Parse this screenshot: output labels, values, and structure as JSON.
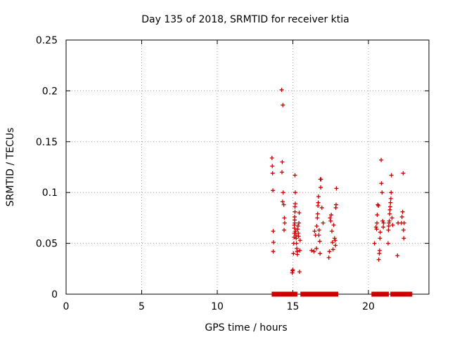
{
  "chart_data": {
    "type": "scatter",
    "title": "Day 135 of 2018, SRMTID for receiver ktia",
    "xlabel": "GPS time / hours",
    "ylabel": "SRMTID / TECUs",
    "xlim": [
      0,
      24
    ],
    "ylim": [
      0,
      0.25
    ],
    "x_ticks": [
      "0",
      "5",
      "10",
      "15",
      "20"
    ],
    "y_ticks": [
      "0",
      "0.05",
      "0.1",
      "0.15",
      "0.2",
      "0.25"
    ],
    "grid": true,
    "marker": "+",
    "color": "#cc0000",
    "series": [
      {
        "points": [
          [
            13.62,
            0.134
          ],
          [
            13.64,
            0.126
          ],
          [
            13.66,
            0.119
          ],
          [
            13.68,
            0.102
          ],
          [
            13.7,
            0.062
          ],
          [
            13.72,
            0.051
          ],
          [
            13.7,
            0.042
          ],
          [
            14.26,
            0.201
          ],
          [
            14.34,
            0.186
          ],
          [
            14.3,
            0.13
          ],
          [
            14.28,
            0.12
          ],
          [
            14.36,
            0.1
          ],
          [
            14.32,
            0.091
          ],
          [
            14.4,
            0.088
          ],
          [
            14.44,
            0.075
          ],
          [
            14.46,
            0.07
          ],
          [
            14.42,
            0.063
          ],
          [
            14.96,
            0.021
          ],
          [
            14.98,
            0.023
          ],
          [
            15.0,
            0.024
          ],
          [
            15.04,
            0.04
          ],
          [
            15.06,
            0.05
          ],
          [
            15.08,
            0.056
          ],
          [
            15.1,
            0.06
          ],
          [
            15.1,
            0.065
          ],
          [
            15.1,
            0.068
          ],
          [
            15.12,
            0.07
          ],
          [
            15.12,
            0.073
          ],
          [
            15.12,
            0.076
          ],
          [
            15.14,
            0.081
          ],
          [
            15.14,
            0.086
          ],
          [
            15.16,
            0.089
          ],
          [
            15.16,
            0.1
          ],
          [
            15.14,
            0.117
          ],
          [
            15.18,
            0.062
          ],
          [
            15.2,
            0.058
          ],
          [
            15.22,
            0.055
          ],
          [
            15.24,
            0.05
          ],
          [
            15.26,
            0.045
          ],
          [
            15.28,
            0.042
          ],
          [
            15.3,
            0.039
          ],
          [
            15.32,
            0.064
          ],
          [
            15.34,
            0.067
          ],
          [
            15.36,
            0.06
          ],
          [
            15.38,
            0.057
          ],
          [
            15.4,
            0.07
          ],
          [
            15.42,
            0.08
          ],
          [
            15.44,
            0.022
          ],
          [
            15.46,
            0.043
          ],
          [
            15.48,
            0.053
          ],
          [
            16.24,
            0.043
          ],
          [
            16.4,
            0.042
          ],
          [
            16.44,
            0.062
          ],
          [
            16.5,
            0.058
          ],
          [
            16.56,
            0.045
          ],
          [
            16.58,
            0.067
          ],
          [
            16.62,
            0.075
          ],
          [
            16.64,
            0.079
          ],
          [
            16.66,
            0.087
          ],
          [
            16.68,
            0.09
          ],
          [
            16.7,
            0.096
          ],
          [
            16.72,
            0.058
          ],
          [
            16.74,
            0.063
          ],
          [
            16.78,
            0.052
          ],
          [
            16.8,
            0.04
          ],
          [
            16.82,
            0.113
          ],
          [
            16.84,
            0.105
          ],
          [
            16.86,
            0.113
          ],
          [
            16.92,
            0.085
          ],
          [
            17.0,
            0.07
          ],
          [
            17.38,
            0.036
          ],
          [
            17.42,
            0.042
          ],
          [
            17.46,
            0.075
          ],
          [
            17.5,
            0.072
          ],
          [
            17.54,
            0.078
          ],
          [
            17.58,
            0.062
          ],
          [
            17.62,
            0.051
          ],
          [
            17.66,
            0.044
          ],
          [
            17.7,
            0.068
          ],
          [
            17.76,
            0.055
          ],
          [
            17.8,
            0.053
          ],
          [
            17.82,
            0.048
          ],
          [
            17.84,
            0.085
          ],
          [
            17.86,
            0.088
          ],
          [
            17.88,
            0.104
          ],
          [
            20.4,
            0.05
          ],
          [
            20.5,
            0.066
          ],
          [
            20.54,
            0.064
          ],
          [
            20.56,
            0.07
          ],
          [
            20.58,
            0.078
          ],
          [
            20.62,
            0.088
          ],
          [
            20.66,
            0.087
          ],
          [
            20.68,
            0.034
          ],
          [
            20.72,
            0.04
          ],
          [
            20.74,
            0.043
          ],
          [
            20.76,
            0.055
          ],
          [
            20.78,
            0.061
          ],
          [
            20.84,
            0.132
          ],
          [
            20.86,
            0.109
          ],
          [
            20.9,
            0.1
          ],
          [
            20.94,
            0.072
          ],
          [
            20.98,
            0.066
          ],
          [
            21.0,
            0.07
          ],
          [
            21.3,
            0.05
          ],
          [
            21.32,
            0.063
          ],
          [
            21.34,
            0.067
          ],
          [
            21.36,
            0.07
          ],
          [
            21.38,
            0.072
          ],
          [
            21.4,
            0.079
          ],
          [
            21.42,
            0.083
          ],
          [
            21.44,
            0.086
          ],
          [
            21.46,
            0.09
          ],
          [
            21.48,
            0.094
          ],
          [
            21.5,
            0.1
          ],
          [
            21.52,
            0.117
          ],
          [
            21.56,
            0.075
          ],
          [
            21.6,
            0.068
          ],
          [
            21.92,
            0.038
          ],
          [
            21.96,
            0.07
          ],
          [
            22.18,
            0.07
          ],
          [
            22.22,
            0.076
          ],
          [
            22.26,
            0.081
          ],
          [
            22.3,
            0.119
          ],
          [
            22.32,
            0.063
          ],
          [
            22.34,
            0.055
          ],
          [
            22.36,
            0.07
          ]
        ]
      }
    ],
    "baseline_segments": [
      [
        13.6,
        15.3
      ],
      [
        15.5,
        18.0
      ],
      [
        20.2,
        21.35
      ],
      [
        21.45,
        22.9
      ]
    ]
  }
}
